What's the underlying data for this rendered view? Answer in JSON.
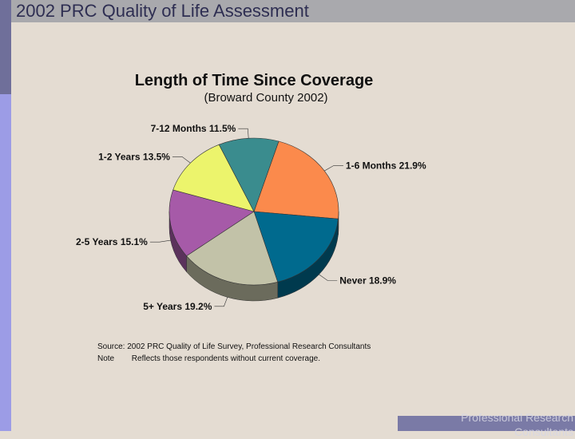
{
  "header": {
    "title": "2002 PRC Quality of Life Assessment"
  },
  "footer": {
    "brand_line1": "Professional Research",
    "brand_line2": "Consultants"
  },
  "notes": {
    "source_key": "Source:",
    "source_text": "2002 PRC Quality of Life Survey, Professional Research Consultants",
    "note_key": "Note",
    "note_text": "Reflects those respondents without current coverage."
  },
  "chart_data": {
    "type": "pie",
    "title": "Length of Time Since Coverage",
    "subtitle": "(Broward County 2002)",
    "slices": [
      {
        "label": "1-6 Months",
        "value": 21.9,
        "value_text": "21.9%",
        "color": "#fb8a4c"
      },
      {
        "label": "Never",
        "value": 18.9,
        "value_text": "18.9%",
        "color": "#006a8e"
      },
      {
        "label": "5+ Years",
        "value": 19.2,
        "value_text": "19.2%",
        "color": "#c2c2a8"
      },
      {
        "label": "2-5 Years",
        "value": 15.1,
        "value_text": "15.1%",
        "color": "#a65aa8"
      },
      {
        "label": "1-2 Years",
        "value": 13.5,
        "value_text": "13.5%",
        "color": "#ecf46c"
      },
      {
        "label": "7-12 Months",
        "value": 11.5,
        "value_text": "11.5%",
        "color": "#3a8c8e"
      }
    ]
  }
}
